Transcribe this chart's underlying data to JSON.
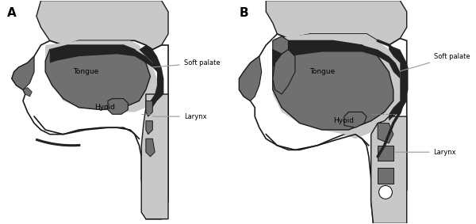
{
  "panel_A_label": "A",
  "panel_B_label": "B",
  "label_tongue_A": "Tongue",
  "label_hyoid_A": "Hyoid",
  "label_soft_palate": "Soft palate",
  "label_larynx": "Larynx",
  "label_tongue_B": "Tongue",
  "label_hyoid_B": "Hyoid",
  "bg_color": "#ffffff",
  "light_gray": "#c8c8c8",
  "dark_gray": "#707070",
  "very_dark": "#222222",
  "outline_color": "#1a1a1a",
  "line_color": "#999999",
  "dashed_color": "#888888"
}
